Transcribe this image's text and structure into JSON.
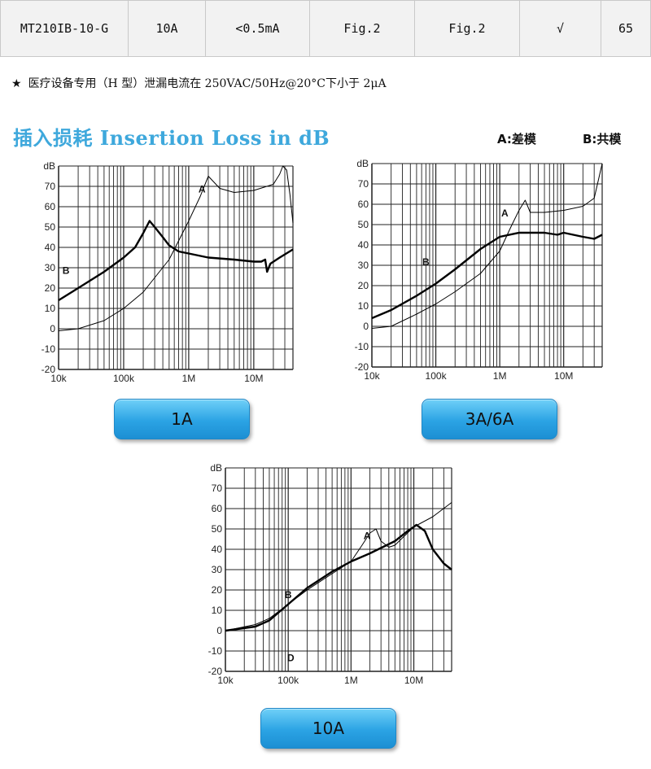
{
  "spec_row": [
    "MT210IB-10-G",
    "10A",
    "<0.5mA",
    "Fig.2",
    "Fig.2",
    "√",
    "65"
  ],
  "note": {
    "star": "★",
    "text": "医疗设备专用（H 型）泄漏电流在 250VAC/50Hz@20°C下小于 2μA"
  },
  "section_title": "插入损耗 Insertion Loss in dB",
  "legend": {
    "a": "A:差模",
    "b": "B:共模"
  },
  "buttons": {
    "b1": "1A",
    "b2": "3A/6A",
    "b3": "10A"
  },
  "chart_data": [
    {
      "type": "line",
      "name": "1A",
      "xscale": "log",
      "xlim": [
        10000,
        40000000
      ],
      "ylim": [
        -20,
        80
      ],
      "y_unit_label": "dB",
      "y_ticks": [
        -20,
        -10,
        0,
        10,
        20,
        30,
        40,
        50,
        60,
        70
      ],
      "x_ticks": [
        {
          "v": 10000,
          "label": "10k"
        },
        {
          "v": 100000,
          "label": "100k"
        },
        {
          "v": 1000000,
          "label": "1M"
        },
        {
          "v": 10000000,
          "label": "10M"
        }
      ],
      "series": [
        {
          "name": "A",
          "label_at": [
            1600000,
            67
          ],
          "x": [
            10000,
            20000,
            50000,
            100000,
            200000,
            500000,
            1000000,
            1500000,
            2000000,
            3000000,
            5000000,
            10000000,
            20000000,
            25000000,
            28000000,
            32000000,
            36000000,
            40000000
          ],
          "y": [
            -1,
            0,
            4,
            10,
            18,
            34,
            53,
            65,
            75,
            69,
            67,
            68,
            71,
            76,
            80,
            78,
            66,
            52
          ]
        },
        {
          "name": "B",
          "label_at": [
            13000,
            27
          ],
          "x": [
            10000,
            20000,
            50000,
            100000,
            150000,
            200000,
            250000,
            300000,
            400000,
            500000,
            700000,
            1000000,
            2000000,
            5000000,
            10000000,
            13000000,
            15000000,
            16000000,
            18000000,
            25000000,
            40000000
          ],
          "y": [
            14,
            20,
            28,
            35,
            40,
            47,
            53,
            50,
            45,
            41,
            38,
            37,
            35,
            34,
            33,
            33,
            34,
            28,
            32,
            35,
            39
          ]
        }
      ]
    },
    {
      "type": "line",
      "name": "3A/6A",
      "xscale": "log",
      "xlim": [
        10000,
        40000000
      ],
      "ylim": [
        -20,
        80
      ],
      "y_unit_label": "dB",
      "y_ticks": [
        -20,
        -10,
        0,
        10,
        20,
        30,
        40,
        50,
        60,
        70
      ],
      "x_ticks": [
        {
          "v": 10000,
          "label": "10k"
        },
        {
          "v": 100000,
          "label": "100k"
        },
        {
          "v": 1000000,
          "label": "1M"
        },
        {
          "v": 10000000,
          "label": "10M"
        }
      ],
      "series": [
        {
          "name": "A",
          "label_at": [
            1200000,
            54
          ],
          "x": [
            10000,
            20000,
            50000,
            100000,
            200000,
            500000,
            1000000,
            1500000,
            2000000,
            2500000,
            3000000,
            5000000,
            10000000,
            20000000,
            30000000,
            35000000,
            40000000
          ],
          "y": [
            -1,
            0,
            6,
            11,
            17,
            26,
            37,
            49,
            57,
            62,
            56,
            56,
            57,
            59,
            63,
            72,
            80
          ]
        },
        {
          "name": "B",
          "label_at": [
            70000,
            30
          ],
          "x": [
            10000,
            20000,
            50000,
            100000,
            200000,
            500000,
            1000000,
            2000000,
            3000000,
            5000000,
            8000000,
            10000000,
            20000000,
            30000000,
            40000000
          ],
          "y": [
            4,
            8,
            15,
            21,
            28,
            38,
            44,
            46,
            46,
            46,
            45,
            46,
            44,
            43,
            45
          ]
        }
      ]
    },
    {
      "type": "line",
      "name": "10A",
      "xscale": "log",
      "xlim": [
        10000,
        40000000
      ],
      "ylim": [
        -20,
        80
      ],
      "y_unit_label": "dB",
      "y_ticks": [
        -20,
        -10,
        0,
        10,
        20,
        30,
        40,
        50,
        60,
        70
      ],
      "x_ticks": [
        {
          "v": 10000,
          "label": "10k"
        },
        {
          "v": 100000,
          "label": "100k"
        },
        {
          "v": 1000000,
          "label": "1M"
        },
        {
          "v": 10000000,
          "label": "10M"
        }
      ],
      "annotation": {
        "text": "D",
        "at": [
          110000,
          -15
        ]
      },
      "series": [
        {
          "name": "A",
          "label_at": [
            1800000,
            45
          ],
          "x": [
            10000,
            30000,
            50000,
            100000,
            200000,
            500000,
            1000000,
            1500000,
            2000000,
            2500000,
            3000000,
            4000000,
            5000000,
            10000000,
            20000000,
            40000000
          ],
          "y": [
            0,
            3,
            6,
            13,
            20,
            28,
            34,
            42,
            48,
            50,
            44,
            41,
            42,
            51,
            56,
            63
          ]
        },
        {
          "name": "B",
          "label_at": [
            100000,
            16
          ],
          "x": [
            10000,
            30000,
            50000,
            100000,
            200000,
            500000,
            1000000,
            2000000,
            5000000,
            8000000,
            10000000,
            11000000,
            15000000,
            20000000,
            30000000,
            40000000
          ],
          "y": [
            0,
            2,
            5,
            13,
            21,
            29,
            34,
            38,
            44,
            49,
            51,
            52,
            49,
            40,
            33,
            30
          ]
        }
      ]
    }
  ]
}
